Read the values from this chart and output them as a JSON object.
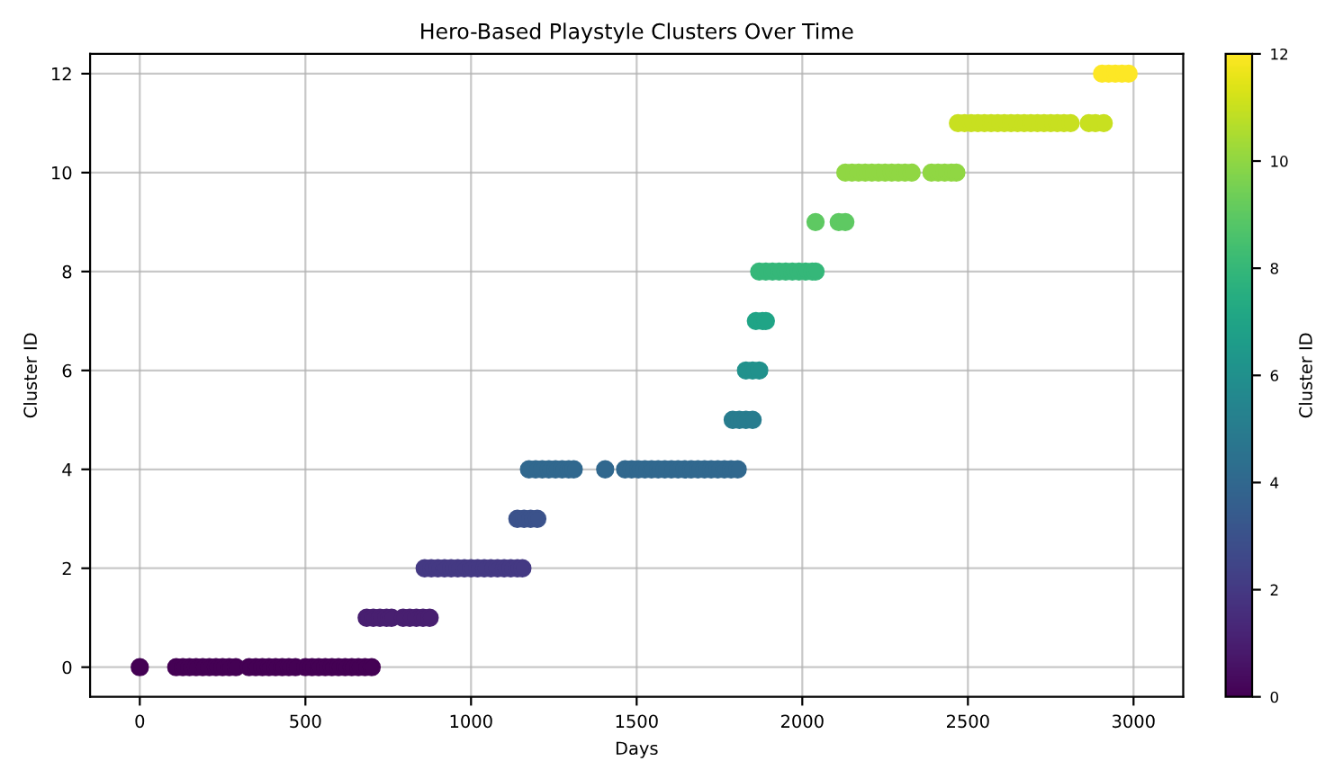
{
  "chart_data": {
    "type": "scatter",
    "title": "Hero-Based Playstyle Clusters Over Time",
    "xlabel": "Days",
    "ylabel": "Cluster ID",
    "clabel": "Cluster ID",
    "xlim": [
      -150,
      3150
    ],
    "xticks": [
      0,
      500,
      1000,
      1500,
      2000,
      2500,
      3000
    ],
    "ylim": [
      -0.6,
      12.4
    ],
    "yticks": [
      0,
      2,
      4,
      6,
      8,
      10,
      12
    ],
    "clim": [
      0,
      12
    ],
    "cticks": [
      0,
      2,
      4,
      6,
      8,
      10,
      12
    ],
    "grid": true,
    "marker": "circle",
    "series": [
      {
        "x": [
          0,
          110,
          130,
          150,
          170,
          190,
          210,
          230,
          250,
          270,
          290,
          330,
          350,
          370,
          390,
          410,
          430,
          450,
          470,
          500,
          520,
          540,
          560,
          580,
          600,
          620,
          640,
          660,
          680,
          700,
          685,
          705,
          725,
          745,
          760,
          795,
          815,
          835,
          855,
          875,
          860,
          880,
          900,
          920,
          940,
          960,
          980,
          1000,
          1020,
          1040,
          1060,
          1080,
          1100,
          1120,
          1140,
          1155,
          1140,
          1160,
          1180,
          1200,
          1175,
          1195,
          1215,
          1235,
          1255,
          1275,
          1295,
          1310,
          1405,
          1465,
          1485,
          1505,
          1525,
          1545,
          1565,
          1585,
          1605,
          1625,
          1645,
          1665,
          1685,
          1705,
          1725,
          1745,
          1765,
          1785,
          1805,
          1790,
          1810,
          1830,
          1850,
          1830,
          1850,
          1870,
          1860,
          1880,
          1890,
          1870,
          1890,
          1910,
          1930,
          1950,
          1970,
          1990,
          2010,
          2030,
          2040,
          2040,
          2110,
          2130,
          2130,
          2150,
          2170,
          2190,
          2210,
          2230,
          2250,
          2270,
          2290,
          2310,
          2330,
          2390,
          2410,
          2430,
          2450,
          2465,
          2470,
          2490,
          2510,
          2530,
          2550,
          2570,
          2590,
          2610,
          2630,
          2650,
          2670,
          2690,
          2710,
          2730,
          2750,
          2770,
          2790,
          2810,
          2865,
          2885,
          2910,
          2905,
          2925,
          2945,
          2965,
          2985
        ],
        "values": [
          0,
          0,
          0,
          0,
          0,
          0,
          0,
          0,
          0,
          0,
          0,
          0,
          0,
          0,
          0,
          0,
          0,
          0,
          0,
          0,
          0,
          0,
          0,
          0,
          0,
          0,
          0,
          0,
          0,
          0,
          1,
          1,
          1,
          1,
          1,
          1,
          1,
          1,
          1,
          1,
          2,
          2,
          2,
          2,
          2,
          2,
          2,
          2,
          2,
          2,
          2,
          2,
          2,
          2,
          2,
          2,
          3,
          3,
          3,
          3,
          4,
          4,
          4,
          4,
          4,
          4,
          4,
          4,
          4,
          4,
          4,
          4,
          4,
          4,
          4,
          4,
          4,
          4,
          4,
          4,
          4,
          4,
          4,
          4,
          4,
          4,
          4,
          5,
          5,
          5,
          5,
          6,
          6,
          6,
          7,
          7,
          7,
          8,
          8,
          8,
          8,
          8,
          8,
          8,
          8,
          8,
          8,
          9,
          9,
          9,
          10,
          10,
          10,
          10,
          10,
          10,
          10,
          10,
          10,
          10,
          10,
          10,
          10,
          10,
          10,
          10,
          11,
          11,
          11,
          11,
          11,
          11,
          11,
          11,
          11,
          11,
          11,
          11,
          11,
          11,
          11,
          11,
          11,
          11,
          11,
          11,
          11,
          12,
          12,
          12,
          12,
          12
        ],
        "cvalues": [
          0,
          0,
          0,
          0,
          0,
          0,
          0,
          0,
          0,
          0,
          0,
          0,
          0,
          0,
          0,
          0,
          0,
          0,
          0,
          0,
          0,
          0,
          0,
          0,
          0,
          0,
          0,
          0,
          0,
          0,
          1,
          1,
          1,
          1,
          1,
          1,
          1,
          1,
          1,
          1,
          2,
          2,
          2,
          2,
          2,
          2,
          2,
          2,
          2,
          2,
          2,
          2,
          2,
          2,
          2,
          2,
          3,
          3,
          3,
          3,
          4,
          4,
          4,
          4,
          4,
          4,
          4,
          4,
          4,
          4,
          4,
          4,
          4,
          4,
          4,
          4,
          4,
          4,
          4,
          4,
          4,
          4,
          4,
          4,
          4,
          4,
          4,
          5,
          5,
          5,
          5,
          6,
          6,
          6,
          7,
          7,
          7,
          8,
          8,
          8,
          8,
          8,
          8,
          8,
          8,
          8,
          8,
          9,
          9,
          9,
          10,
          10,
          10,
          10,
          10,
          10,
          10,
          10,
          10,
          10,
          10,
          10,
          10,
          10,
          10,
          10,
          11,
          11,
          11,
          11,
          11,
          11,
          11,
          11,
          11,
          11,
          11,
          11,
          11,
          11,
          11,
          11,
          11,
          11,
          11,
          11,
          11,
          12,
          12,
          12,
          12,
          12
        ]
      }
    ]
  }
}
